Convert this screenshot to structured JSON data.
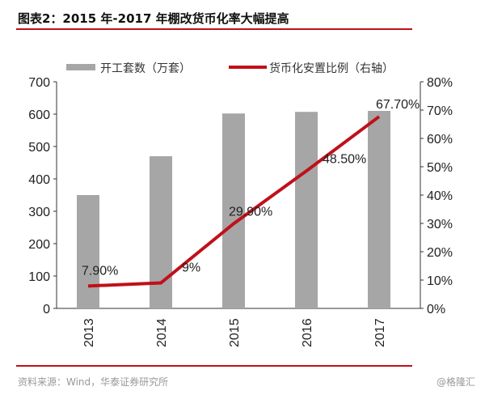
{
  "title": "图表2：2015 年-2017 年棚改货币化率大幅提高",
  "source": "资料来源：Wind，华泰证券研究所",
  "watermark": "@格隆汇",
  "chart_data": {
    "type": "bar",
    "categories": [
      "2013",
      "2014",
      "2015",
      "2016",
      "2017"
    ],
    "series": [
      {
        "name": "开工套数（万套）",
        "type": "bar",
        "axis": "left",
        "color": "#a6a6a6",
        "values": [
          350,
          470,
          602,
          607,
          610
        ]
      },
      {
        "name": "货币化安置比例（右轴）",
        "type": "line",
        "axis": "right",
        "color": "#c0101a",
        "values": [
          7.9,
          9,
          29.9,
          48.5,
          67.7
        ],
        "labels": [
          "7.90%",
          "9%",
          "29.90%",
          "48.50%",
          "67.70%"
        ]
      }
    ],
    "ylim": [
      0,
      700
    ],
    "yticks": [
      "0",
      "100",
      "200",
      "300",
      "400",
      "500",
      "600",
      "700"
    ],
    "y2lim": [
      0,
      80
    ],
    "y2ticks": [
      "0%",
      "10%",
      "20%",
      "30%",
      "40%",
      "50%",
      "60%",
      "70%",
      "80%"
    ],
    "legend": "top"
  }
}
